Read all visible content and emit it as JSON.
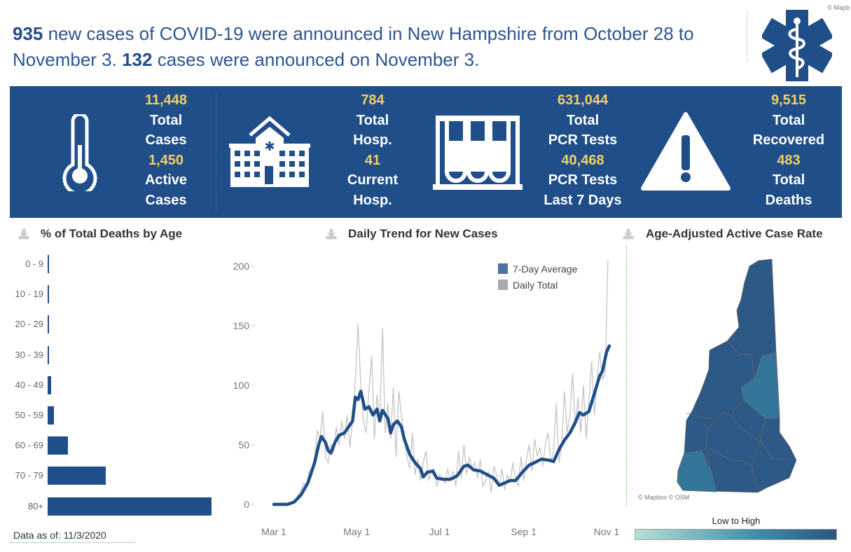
{
  "headline": {
    "new_cases": "935",
    "part1": " new cases of COVID-19 were announced in New Hampshire from October 28 to November 3. ",
    "today_cases": "132",
    "part2": " cases were announced on November 3."
  },
  "banner": {
    "cases": {
      "total": "11,448",
      "total_label1": "Total",
      "total_label2": "Cases",
      "active": "1,450",
      "active_label1": "Active",
      "active_label2": "Cases"
    },
    "hosp": {
      "total": "784",
      "total_label1": "Total",
      "total_label2": "Hosp.",
      "current": "41",
      "current_label1": "Current",
      "current_label2": "Hosp."
    },
    "tests": {
      "total": "631,044",
      "total_label1": "Total",
      "total_label2": "PCR Tests",
      "recent": "40,468",
      "recent_label1": "PCR Tests",
      "recent_label2": "Last 7 Days"
    },
    "outcomes": {
      "recovered": "9,515",
      "recovered_label1": "Total",
      "recovered_label2": "Recovered",
      "deaths": "483",
      "deaths_label1": "Total",
      "deaths_label2": "Deaths"
    }
  },
  "colors": {
    "brand": "#1f4e89",
    "highlight": "#f2cf63",
    "daily": "#c4c4c8",
    "map_dark": "#2d5986",
    "map_light": "#337599"
  },
  "footer": {
    "data_as_of": "Data as of: 11/3/2020"
  },
  "map": {
    "title": "Age-Adjusted Active Case Rate",
    "attribution": "© Mapbox © OSM",
    "corner_attribution": "© Mapb",
    "legend_label": "Low to High"
  },
  "chart_data": [
    {
      "type": "bar",
      "title": "% of Total Deaths by Age",
      "categories": [
        "0 - 9",
        "10 - 19",
        "20 - 29",
        "30 - 39",
        "40 - 49",
        "50 - 59",
        "60 - 69",
        "70 - 79",
        "80+"
      ],
      "values": [
        0.1,
        0.1,
        0.1,
        0.2,
        1.5,
        2.5,
        8.5,
        24,
        68
      ],
      "unit": "%"
    },
    {
      "type": "line",
      "title": "Daily Trend for New Cases",
      "start_date": "2020-03-01",
      "x_ticks": [
        {
          "label": "Mar 1",
          "day": 0
        },
        {
          "label": "May 1",
          "day": 61
        },
        {
          "label": "Jul 1",
          "day": 122
        },
        {
          "label": "Sep 1",
          "day": 184
        },
        {
          "label": "Nov 1",
          "day": 245
        }
      ],
      "y_ticks": [
        0,
        50,
        100,
        150,
        200
      ],
      "ylim": [
        0,
        200
      ],
      "xlim_days": [
        0,
        247
      ],
      "legend": [
        "7-Day Average",
        "Daily Total"
      ],
      "legend_position": "top-right",
      "seven_day_average": [
        [
          0,
          0
        ],
        [
          10,
          0
        ],
        [
          15,
          2
        ],
        [
          20,
          8
        ],
        [
          25,
          18
        ],
        [
          30,
          35
        ],
        [
          33,
          50
        ],
        [
          35,
          57
        ],
        [
          38,
          52
        ],
        [
          40,
          45
        ],
        [
          42,
          43
        ],
        [
          45,
          52
        ],
        [
          48,
          58
        ],
        [
          52,
          60
        ],
        [
          55,
          65
        ],
        [
          58,
          70
        ],
        [
          60,
          90
        ],
        [
          62,
          88
        ],
        [
          64,
          95
        ],
        [
          67,
          80
        ],
        [
          70,
          82
        ],
        [
          73,
          75
        ],
        [
          76,
          80
        ],
        [
          78,
          70
        ],
        [
          80,
          79
        ],
        [
          84,
          72
        ],
        [
          86,
          60
        ],
        [
          88,
          67
        ],
        [
          91,
          70
        ],
        [
          94,
          65
        ],
        [
          96,
          55
        ],
        [
          100,
          42
        ],
        [
          104,
          35
        ],
        [
          108,
          30
        ],
        [
          110,
          23
        ],
        [
          113,
          27
        ],
        [
          117,
          28
        ],
        [
          120,
          22
        ],
        [
          125,
          21
        ],
        [
          130,
          21
        ],
        [
          135,
          24
        ],
        [
          140,
          32
        ],
        [
          143,
          33
        ],
        [
          147,
          29
        ],
        [
          152,
          28
        ],
        [
          157,
          25
        ],
        [
          162,
          22
        ],
        [
          166,
          16
        ],
        [
          170,
          18
        ],
        [
          174,
          20
        ],
        [
          178,
          20
        ],
        [
          183,
          27
        ],
        [
          188,
          33
        ],
        [
          192,
          35
        ],
        [
          197,
          38
        ],
        [
          203,
          37
        ],
        [
          206,
          36
        ],
        [
          210,
          46
        ],
        [
          214,
          54
        ],
        [
          218,
          60
        ],
        [
          222,
          69
        ],
        [
          225,
          77
        ],
        [
          228,
          75
        ],
        [
          232,
          78
        ],
        [
          236,
          93
        ],
        [
          240,
          108
        ],
        [
          242,
          112
        ],
        [
          245,
          128
        ],
        [
          247,
          133
        ]
      ],
      "daily_total_every_2_days": [
        0,
        0,
        0,
        0,
        0,
        0,
        1,
        2,
        4,
        8,
        12,
        18,
        15,
        28,
        30,
        40,
        62,
        55,
        78,
        40,
        35,
        50,
        45,
        65,
        50,
        70,
        55,
        75,
        48,
        70,
        105,
        152,
        100,
        70,
        60,
        95,
        125,
        55,
        92,
        70,
        148,
        60,
        85,
        55,
        98,
        40,
        95,
        75,
        55,
        40,
        30,
        60,
        25,
        38,
        20,
        35,
        45,
        20,
        28,
        30,
        15,
        25,
        22,
        18,
        30,
        20,
        28,
        15,
        45,
        22,
        50,
        25,
        40,
        30,
        35,
        22,
        38,
        15,
        20,
        28,
        10,
        32,
        25,
        15,
        30,
        12,
        25,
        18,
        35,
        22,
        15,
        40,
        20,
        38,
        50,
        28,
        55,
        40,
        48,
        32,
        52,
        60,
        35,
        45,
        85,
        35,
        50,
        95,
        60,
        75,
        110,
        65,
        90,
        60,
        100,
        55,
        85,
        120,
        75,
        105,
        128,
        105,
        110,
        205
      ]
    }
  ]
}
